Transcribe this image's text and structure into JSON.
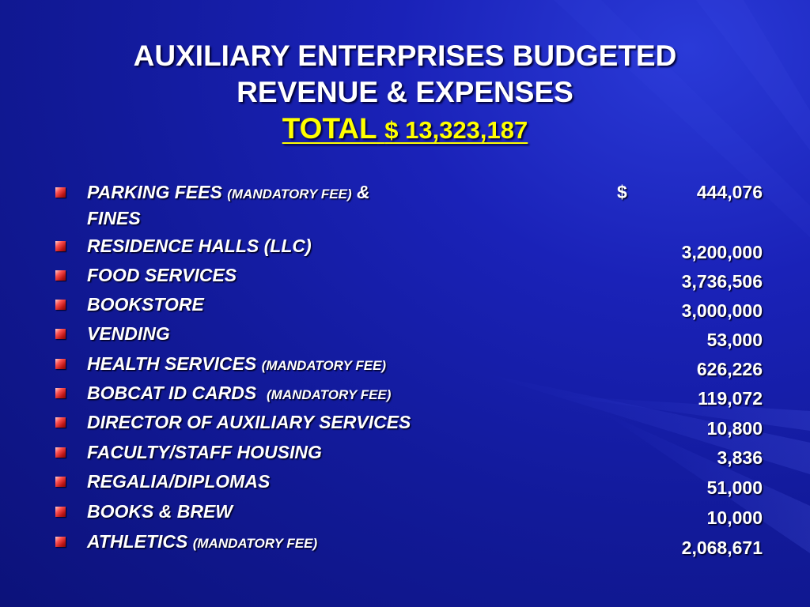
{
  "title": {
    "line1": "AUXILIARY ENTERPRISES BUDGETED",
    "line2": "REVENUE  & EXPENSES",
    "total_word": "TOTAL",
    "total_amount": "$ 13,323,187"
  },
  "currency_symbol": "$",
  "items": [
    {
      "name": "PARKING FEES",
      "note": "(MANDATORY FEE)",
      "suffix": "&",
      "line2": "FINES",
      "amount": "444,076"
    },
    {
      "name": "RESIDENCE HALLS  (LLC)",
      "note": "",
      "amount": "3,200,000"
    },
    {
      "name": "FOOD SERVICES",
      "note": "",
      "amount": "3,736,506"
    },
    {
      "name": "BOOKSTORE",
      "note": "",
      "amount": "3,000,000"
    },
    {
      "name": "VENDING",
      "note": "",
      "amount": "53,000"
    },
    {
      "name": "HEALTH SERVICES",
      "note": "(MANDATORY FEE)",
      "amount": "626,226"
    },
    {
      "name": "BOBCAT ID CARDS",
      "note": "(MANDATORY FEE)",
      "amount": "119,072"
    },
    {
      "name": "DIRECTOR OF AUXILIARY SERVICES",
      "note": "",
      "amount": "10,800"
    },
    {
      "name": "FACULTY/STAFF HOUSING",
      "note": "",
      "amount": "3,836"
    },
    {
      "name": "REGALIA/DIPLOMAS",
      "note": "",
      "amount": "51,000"
    },
    {
      "name": "BOOKS & BREW",
      "note": "",
      "amount": "10,000"
    },
    {
      "name": "ATHLETICS",
      "note": "(MANDATORY FEE)",
      "amount": "2,068,671"
    }
  ],
  "colors": {
    "background": "#1a22b8",
    "title_text": "#ffffff",
    "total_text": "#ffff00",
    "bullet": "#e03030"
  }
}
